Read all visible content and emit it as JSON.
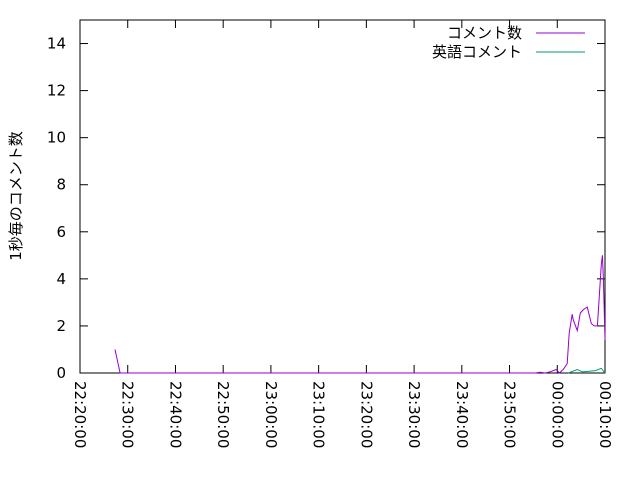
{
  "chart_data": {
    "type": "line",
    "title": "",
    "xlabel": "",
    "ylabel": "1秒毎のコメント数",
    "xlim": [
      "22:20:00",
      "00:10:00"
    ],
    "ylim": [
      0,
      15
    ],
    "x_ticks": [
      "22:20:00",
      "22:30:00",
      "22:40:00",
      "22:50:00",
      "23:00:00",
      "23:10:00",
      "23:20:00",
      "23:30:00",
      "23:40:00",
      "23:50:00",
      "00:00:00",
      "00:10:00"
    ],
    "y_ticks": [
      "0",
      "2",
      "4",
      "6",
      "8",
      "10",
      "12",
      "14"
    ],
    "grid": false,
    "legend_position": "top-right",
    "series": [
      {
        "name": "コメント数",
        "color": "#9400d3",
        "x": [
          "22:27:20",
          "22:28:24",
          "23:55:24",
          "23:56:25",
          "23:57:30",
          "23:58:30",
          "23:59:48",
          "00:00:25",
          "00:01:15",
          "00:02:05",
          "00:02:30",
          "00:03:08",
          "00:03:21",
          "00:04:12",
          "00:04:50",
          "00:05:28",
          "00:06:18",
          "00:07:08",
          "00:07:46",
          "00:08:24",
          "00:09:14",
          "00:09:27",
          "00:09:40",
          "00:10:00"
        ],
        "y": [
          1.0,
          0,
          0,
          0.03,
          0,
          0.05,
          0.15,
          0,
          0.15,
          0.4,
          1.7,
          2.5,
          2.25,
          1.8,
          2.55,
          2.7,
          2.8,
          2.1,
          2.0,
          2.0,
          4.6,
          5.0,
          4.0,
          1.4
        ]
      },
      {
        "name": "英語コメント",
        "color": "#009e73",
        "x": [
          "00:02:18",
          "00:04:12",
          "00:05:15",
          "00:06:31",
          "00:07:59",
          "00:09:14",
          "00:10:00"
        ],
        "y": [
          0,
          0.15,
          0.05,
          0.07,
          0.1,
          0.2,
          0
        ]
      }
    ]
  }
}
